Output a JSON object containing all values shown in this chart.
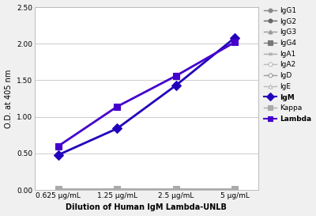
{
  "x_labels": [
    "0.625 μg/mL",
    "1.25 μg/mL",
    "2.5 μg/mL",
    "5 μg/mL"
  ],
  "x_values": [
    0,
    1,
    2,
    3
  ],
  "series_order": [
    "IgG1",
    "IgG2",
    "IgG3",
    "IgG4",
    "IgA1",
    "IgA2",
    "IgD",
    "IgE",
    "IgM",
    "Kappa",
    "Lambda"
  ],
  "series": {
    "IgG1": {
      "values": [
        0.01,
        0.01,
        0.01,
        0.01
      ],
      "color": "#888888",
      "marker": "o",
      "lw": 1.0,
      "ms": 4,
      "mfc": "#888888"
    },
    "IgG2": {
      "values": [
        0.01,
        0.01,
        0.01,
        0.01
      ],
      "color": "#666666",
      "marker": "o",
      "lw": 1.0,
      "ms": 4,
      "mfc": "#666666"
    },
    "IgG3": {
      "values": [
        0.01,
        0.01,
        0.01,
        0.01
      ],
      "color": "#999999",
      "marker": "^",
      "lw": 1.0,
      "ms": 4,
      "mfc": "#999999"
    },
    "IgG4": {
      "values": [
        0.01,
        0.01,
        0.01,
        0.01
      ],
      "color": "#777777",
      "marker": "s",
      "lw": 1.0,
      "ms": 5,
      "mfc": "#777777"
    },
    "IgA1": {
      "values": [
        0.01,
        0.01,
        0.01,
        0.01
      ],
      "color": "#aaaaaa",
      "marker": "x",
      "lw": 1.0,
      "ms": 4,
      "mfc": "#aaaaaa"
    },
    "IgA2": {
      "values": [
        0.01,
        0.01,
        0.01,
        0.01
      ],
      "color": "#bbbbbb",
      "marker": "o",
      "lw": 1.0,
      "ms": 4,
      "mfc": "white"
    },
    "IgD": {
      "values": [
        0.01,
        0.01,
        0.01,
        0.01
      ],
      "color": "#999999",
      "marker": "o",
      "lw": 1.0,
      "ms": 4,
      "mfc": "white"
    },
    "IgE": {
      "values": [
        0.01,
        0.01,
        0.01,
        0.01
      ],
      "color": "#bbbbbb",
      "marker": "^",
      "lw": 1.0,
      "ms": 4,
      "mfc": "white"
    },
    "IgM": {
      "values": [
        0.48,
        0.84,
        1.43,
        2.08
      ],
      "color": "#2200bb",
      "marker": "D",
      "lw": 2.0,
      "ms": 6,
      "mfc": "#2200bb"
    },
    "Kappa": {
      "values": [
        0.01,
        0.01,
        0.01,
        0.01
      ],
      "color": "#aaaaaa",
      "marker": "s",
      "lw": 1.0,
      "ms": 6,
      "mfc": "#aaaaaa"
    },
    "Lambda": {
      "values": [
        0.6,
        1.14,
        1.56,
        2.02
      ],
      "color": "#4400cc",
      "marker": "s",
      "lw": 2.0,
      "ms": 6,
      "mfc": "#4400cc"
    }
  },
  "ylabel": "O.D. at 405 nm",
  "xlabel": "Dilution of Human IgM Lambda-UNLB",
  "ylim": [
    0,
    2.5
  ],
  "yticks": [
    0.0,
    0.5,
    1.0,
    1.5,
    2.0,
    2.5
  ],
  "bg_color": "#f0f0f0",
  "plot_bg": "#ffffff",
  "label_fontsize": 7,
  "tick_fontsize": 6.5,
  "legend_fontsize": 6.5
}
